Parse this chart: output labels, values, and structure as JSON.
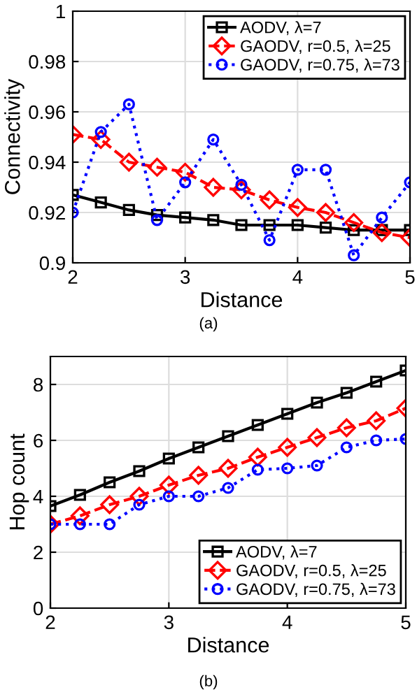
{
  "chart_data": [
    {
      "type": "line",
      "xlabel": "Distance",
      "ylabel": "Connectivity",
      "annotations": [
        "(a)"
      ],
      "x": [
        2,
        2.25,
        2.5,
        2.75,
        3,
        3.25,
        3.5,
        3.75,
        4,
        4.25,
        4.5,
        4.75,
        5
      ],
      "xlim": [
        2,
        5
      ],
      "xticks": [
        2,
        3,
        4,
        5
      ],
      "ylim": [
        0.9,
        1
      ],
      "yticks": [
        0.9,
        0.92,
        0.94,
        0.96,
        0.98,
        1
      ],
      "grid": true,
      "legend": "top right",
      "series": [
        {
          "name": "AODV, λ=7",
          "color": "#000000",
          "marker": "square",
          "line_style": "solid",
          "values": [
            0.927,
            0.924,
            0.921,
            0.919,
            0.918,
            0.917,
            0.915,
            0.915,
            0.915,
            0.914,
            0.913,
            0.913,
            0.913
          ]
        },
        {
          "name": "GAODV, r=0.5, λ=25",
          "color": "#ff0000",
          "marker": "diamond",
          "line_style": "dashed",
          "values": [
            0.951,
            0.949,
            0.94,
            0.938,
            0.936,
            0.93,
            0.929,
            0.925,
            0.922,
            0.92,
            0.916,
            0.912,
            0.91
          ]
        },
        {
          "name": "GAODV, r=0.75, λ=73",
          "color": "#0000ff",
          "marker": "circle",
          "line_style": "dotted",
          "values": [
            0.92,
            0.952,
            0.963,
            0.917,
            0.932,
            0.949,
            0.931,
            0.909,
            0.937,
            0.937,
            0.903,
            0.918,
            0.932
          ]
        }
      ]
    },
    {
      "type": "line",
      "xlabel": "Distance",
      "ylabel": "Hop count",
      "annotations": [
        "(b)"
      ],
      "x": [
        2,
        2.25,
        2.5,
        2.75,
        3,
        3.25,
        3.5,
        3.75,
        4,
        4.25,
        4.5,
        4.75,
        5
      ],
      "xlim": [
        2,
        5
      ],
      "xticks": [
        2,
        3,
        4,
        5
      ],
      "ylim": [
        0,
        9
      ],
      "yticks": [
        0,
        2,
        4,
        6,
        8
      ],
      "grid": true,
      "legend": "bottom right",
      "series": [
        {
          "name": "AODV, λ=7",
          "color": "#000000",
          "marker": "square",
          "line_style": "solid",
          "values": [
            3.65,
            4.05,
            4.5,
            4.9,
            5.35,
            5.75,
            6.15,
            6.55,
            6.95,
            7.35,
            7.7,
            8.1,
            8.5
          ]
        },
        {
          "name": "GAODV, r=0.5, λ=25",
          "color": "#ff0000",
          "marker": "diamond",
          "line_style": "dashed",
          "values": [
            3.0,
            3.3,
            3.7,
            4.0,
            4.4,
            4.75,
            5.0,
            5.4,
            5.75,
            6.1,
            6.45,
            6.7,
            7.15
          ]
        },
        {
          "name": "GAODV, r=0.75, λ=73",
          "color": "#0000ff",
          "marker": "circle",
          "line_style": "dotted",
          "values": [
            3.0,
            3.0,
            3.0,
            3.7,
            4.0,
            4.0,
            4.3,
            4.95,
            5.0,
            5.1,
            5.75,
            6.0,
            6.05
          ]
        }
      ]
    }
  ]
}
